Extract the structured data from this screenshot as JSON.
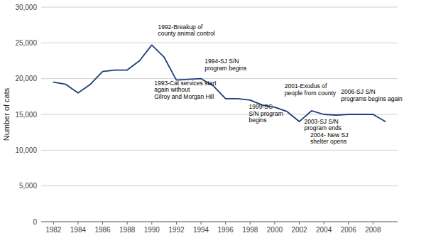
{
  "chart_data": {
    "type": "line",
    "ylabel": "Number of cats",
    "x": [
      1982,
      1983,
      1984,
      1985,
      1986,
      1987,
      1988,
      1989,
      1990,
      1991,
      1992,
      1993,
      1994,
      1995,
      1996,
      1997,
      1998,
      1999,
      2000,
      2001,
      2002,
      2003,
      2004,
      2005,
      2006,
      2007,
      2008,
      2009
    ],
    "values": [
      19500,
      19200,
      18000,
      19200,
      21000,
      21200,
      21200,
      22500,
      24700,
      23000,
      19800,
      19900,
      20000,
      19000,
      17200,
      17200,
      17000,
      16300,
      16000,
      15400,
      14000,
      15500,
      15000,
      14900,
      15000,
      15000,
      15000,
      14000
    ],
    "color": "#1f3d7a",
    "xlim": [
      1981,
      2010
    ],
    "ylim": [
      0,
      30000
    ],
    "xticks": [
      1982,
      1984,
      1986,
      1988,
      1990,
      1992,
      1994,
      1996,
      1998,
      2000,
      2002,
      2004,
      2006,
      2008
    ],
    "yticks": [
      0,
      {
        "value": 5000,
        "label": "5,000"
      },
      {
        "value": 10000,
        "label": "10,000"
      },
      {
        "value": 15000,
        "label": "15,000"
      },
      {
        "value": 20000,
        "label": "20,000"
      },
      {
        "value": 25000,
        "label": "25,000"
      },
      {
        "value": 30000,
        "label": "30,000"
      }
    ],
    "grid": true,
    "annotations": [
      {
        "text": "1992-Breakup of\ncounty animal control",
        "x": 1990.5,
        "y": 25800
      },
      {
        "text": "1993-Cat services start\nagain without\nGilroy and Morgan Hill",
        "x": 1990.2,
        "y": 17000
      },
      {
        "text": "1994-SJ S/N\nprogram begins",
        "x": 1994.3,
        "y": 21000
      },
      {
        "text": "1999-SC\nS/N program\nbegins",
        "x": 1997.9,
        "y": 13700
      },
      {
        "text": "2001-Exodus of\npeople from county",
        "x": 2000.8,
        "y": 17500
      },
      {
        "text": "2003-SJ S/N\nprogram ends",
        "x": 2002.4,
        "y": 12600
      },
      {
        "text": "2004- New SJ\nshelter opens",
        "x": 2002.9,
        "y": 10700
      },
      {
        "text": "2006-SJ S/N\nprograms begins again",
        "x": 2005.4,
        "y": 16700
      }
    ]
  }
}
